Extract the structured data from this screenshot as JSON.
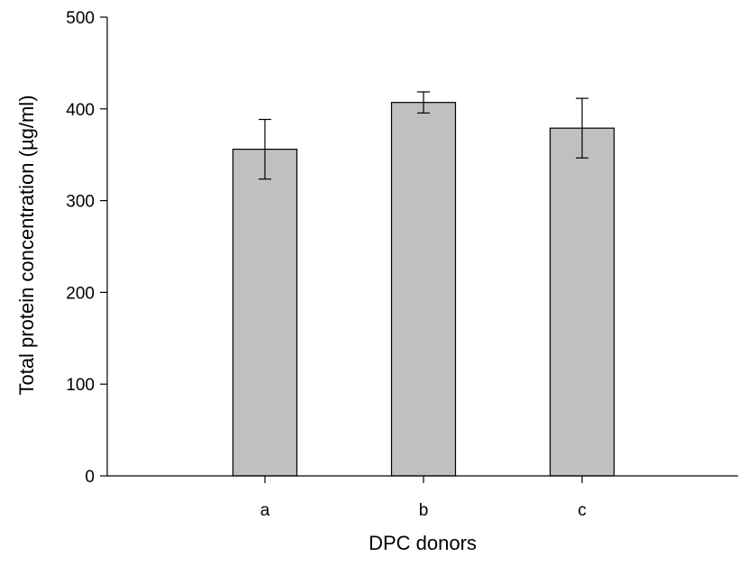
{
  "chart_data": {
    "type": "bar",
    "categories": [
      "a",
      "b",
      "c"
    ],
    "values": [
      356,
      407,
      379
    ],
    "errors": [
      32.5,
      11.5,
      32.5
    ],
    "xlabel": "DPC donors",
    "ylabel": "Total protein concentration (µg/ml)",
    "ylim": [
      0,
      500
    ],
    "yticks": [
      0,
      100,
      200,
      300,
      400,
      500
    ],
    "grid": false,
    "legend": "none",
    "bar_color": "#c0c0c0",
    "edge_color": "#000000"
  }
}
